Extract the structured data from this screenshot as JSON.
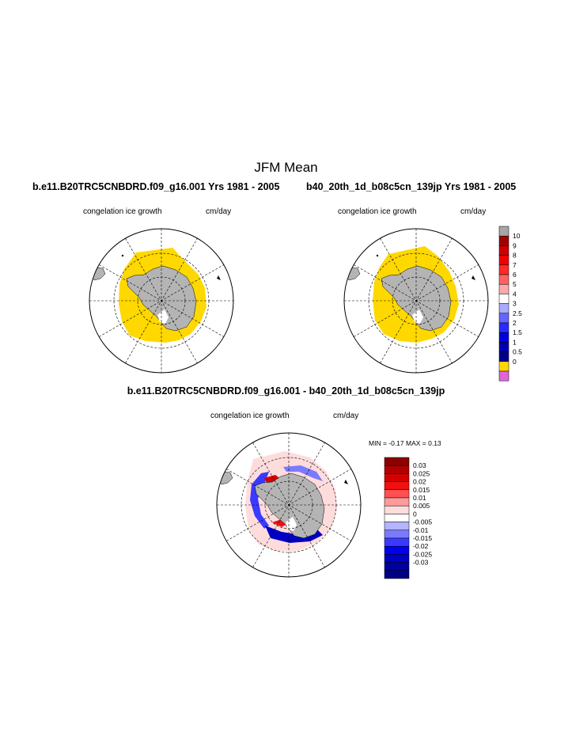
{
  "main_title": "JFM Mean",
  "panels": {
    "left": {
      "title": "b.e11.B20TRC5CNBDRD.f09_g16.001  Yrs 1981 - 2005",
      "variable": "congelation ice growth",
      "units": "cm/day"
    },
    "right": {
      "title": "b40_20th_1d_b08c5cn_139jp  Yrs 1981 - 2005",
      "variable": "congelation ice growth",
      "units": "cm/day"
    },
    "diff": {
      "title": "b.e11.B20TRC5CNBDRD.f09_g16.001 - b40_20th_1d_b08c5cn_139jp",
      "variable": "congelation ice growth",
      "units": "cm/day",
      "minmax": "MIN =  -0.17 MAX =   0.13"
    }
  },
  "colorbar_top": {
    "labels": [
      "10",
      "9",
      "8",
      "7",
      "6",
      "5",
      "4",
      "3",
      "2.5",
      "2",
      "1.5",
      "1",
      "0.5",
      "0"
    ],
    "colors": [
      "#a6a6a6",
      "#a00000",
      "#cc0000",
      "#f00000",
      "#ff2a2a",
      "#ff6464",
      "#ffaaaa",
      "#ffffff",
      "#aaaaff",
      "#6464ff",
      "#2a2aff",
      "#0000e0",
      "#0000b0",
      "#00008a",
      "#ffd800",
      "#e066d8"
    ]
  },
  "colorbar_diff": {
    "labels": [
      "0.03",
      "0.025",
      "0.02",
      "0.015",
      "0.01",
      "0.005",
      "0",
      "-0.005",
      "-0.01",
      "-0.015",
      "-0.02",
      "-0.025",
      "-0.03"
    ],
    "colors": [
      "#8b0000",
      "#b00000",
      "#d40000",
      "#f21010",
      "#ff5050",
      "#ff9a9a",
      "#ffdcdc",
      "#ffffff",
      "#b4b4ff",
      "#7a7aff",
      "#3a3aff",
      "#0000ee",
      "#0000c4",
      "#0000a0",
      "#000082"
    ]
  },
  "colors": {
    "ice": "#ffd800",
    "land": "#b4b4b4",
    "ocean": "#ffffff"
  }
}
